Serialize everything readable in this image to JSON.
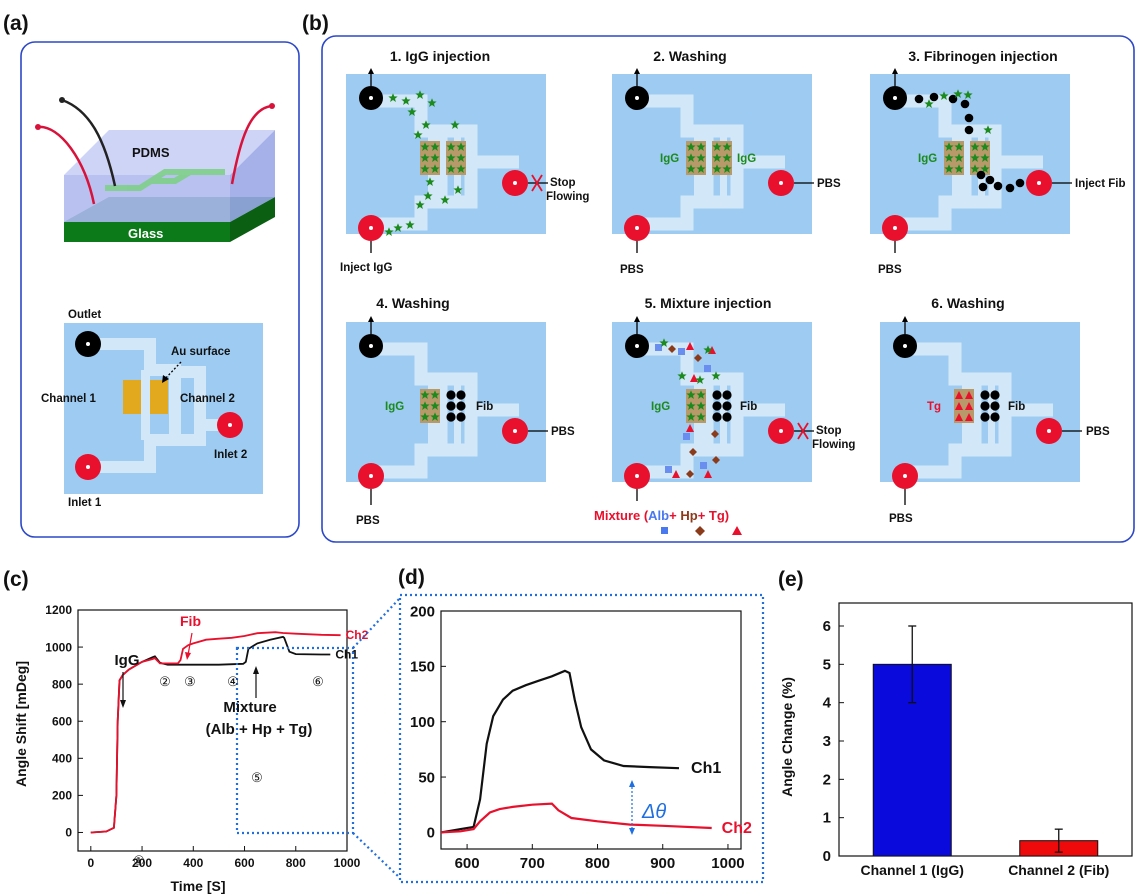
{
  "panels": {
    "a": {
      "label": "(a)",
      "device": {
        "pdms": "PDMS",
        "glass": "Glass"
      },
      "layout": {
        "outlet": "Outlet",
        "au_surface": "Au surface",
        "channel1": "Channel 1",
        "channel2": "Channel 2",
        "inlet1": "Inlet 1",
        "inlet2": "Inlet 2"
      }
    },
    "b": {
      "label": "(b)",
      "steps": [
        {
          "title": "1. IgG injection",
          "inlet_label": "Inject IgG",
          "right_label_1": "Stop",
          "right_label_2": "Flowing"
        },
        {
          "title": "2. Washing",
          "inlet_label": "PBS",
          "right_label": "PBS",
          "ch1": "IgG",
          "ch2": "IgG"
        },
        {
          "title": "3. Fibrinogen injection",
          "inlet_label": "PBS",
          "right_label": "Inject Fib",
          "ch1": "IgG"
        },
        {
          "title": "4. Washing",
          "inlet_label": "PBS",
          "right_label": "PBS",
          "ch1": "IgG",
          "ch2": "Fib"
        },
        {
          "title": "5. Mixture injection",
          "right_label_1": "Stop",
          "right_label_2": "Flowing",
          "ch1": "IgG",
          "ch2": "Fib"
        },
        {
          "title": "6. Washing",
          "inlet_label": "PBS",
          "right_label": "PBS",
          "ch1": "Tg",
          "ch2": "Fib"
        }
      ],
      "mixture": {
        "prefix": "Mixture (",
        "alb": "Alb",
        "plus1": "+ ",
        "hp": "Hp",
        "plus2": "+ ",
        "tg": "Tg",
        "suffix": ")"
      }
    },
    "c": {
      "label": "(c)"
    },
    "d": {
      "label": "(d)"
    },
    "e": {
      "label": "(e)"
    }
  },
  "colors": {
    "pink_red": "#e8102c",
    "channel_blue": "#9dcbf2",
    "frame_blue": "#2c48c8",
    "dotted_blue": "#1f6fe0",
    "bar_blue": "#0a0adc",
    "bar_red": "#ee0a0a",
    "igg_green": "#1d8a1d"
  },
  "chart_data": [
    {
      "id": "c",
      "type": "line",
      "xlabel": "Time [S]",
      "ylabel": "Angle Shift [mDeg]",
      "xlim": [
        -50,
        1000
      ],
      "ylim": [
        -100,
        1200
      ],
      "xticks": [
        0,
        200,
        400,
        600,
        800,
        1000
      ],
      "yticks": [
        0,
        200,
        400,
        600,
        800,
        1000,
        1200
      ],
      "series": [
        {
          "name": "Ch1",
          "color": "#111111",
          "x": [
            0,
            60,
            90,
            100,
            105,
            112,
            125,
            150,
            200,
            240,
            250,
            270,
            300,
            400,
            500,
            595,
            605,
            615,
            650,
            700,
            750,
            755,
            775,
            800,
            900,
            935
          ],
          "y": [
            0,
            5,
            25,
            200,
            600,
            820,
            850,
            880,
            920,
            945,
            950,
            915,
            905,
            905,
            905,
            910,
            920,
            990,
            1020,
            1040,
            1055,
            1050,
            975,
            962,
            960,
            960
          ]
        },
        {
          "name": "Ch2",
          "color": "#e8102c",
          "x": [
            0,
            60,
            90,
            100,
            105,
            112,
            125,
            150,
            200,
            240,
            250,
            270,
            340,
            350,
            360,
            380,
            400,
            450,
            500,
            550,
            600,
            650,
            720,
            750,
            800,
            900,
            975
          ],
          "y": [
            0,
            5,
            25,
            200,
            600,
            820,
            850,
            880,
            920,
            935,
            940,
            912,
            912,
            930,
            990,
            1010,
            1020,
            1040,
            1045,
            1050,
            1060,
            1075,
            1080,
            1076,
            1072,
            1066,
            1064
          ]
        }
      ],
      "annotations": {
        "igg": "IgG",
        "fib": "Fib",
        "mixture": "Mixture",
        "mixture_parts": "(Alb + Hp + Tg)",
        "steps": [
          "①",
          "②",
          "③",
          "④",
          "⑤",
          "⑥"
        ]
      }
    },
    {
      "id": "d",
      "type": "line",
      "xlim": [
        560,
        1020
      ],
      "ylim": [
        -15,
        200
      ],
      "xticks": [
        600,
        700,
        800,
        900,
        1000
      ],
      "yticks": [
        0,
        50,
        100,
        150,
        200
      ],
      "series": [
        {
          "name": "Ch1",
          "color": "#111111",
          "x": [
            560,
            590,
            610,
            620,
            630,
            640,
            655,
            670,
            690,
            710,
            730,
            750,
            757,
            765,
            775,
            790,
            810,
            840,
            880,
            925
          ],
          "y": [
            0,
            3,
            5,
            30,
            80,
            105,
            120,
            128,
            133,
            137,
            141,
            146,
            144,
            120,
            95,
            75,
            65,
            60,
            59,
            58
          ]
        },
        {
          "name": "Ch2",
          "color": "#e8102c",
          "x": [
            560,
            590,
            610,
            620,
            635,
            650,
            670,
            700,
            730,
            740,
            760,
            800,
            850,
            900,
            975
          ],
          "y": [
            0,
            1,
            3,
            10,
            18,
            21,
            23,
            25,
            26,
            20,
            13,
            10,
            7,
            6,
            4
          ]
        }
      ],
      "annotations": {
        "delta": "Δθ"
      }
    },
    {
      "id": "e",
      "type": "bar",
      "categories": [
        "Channel 1 (IgG)",
        "Channel 2 (Fib)"
      ],
      "values": [
        5.0,
        0.4
      ],
      "errors": [
        1.0,
        0.3
      ],
      "colors": [
        "#0a0adc",
        "#ee0a0a"
      ],
      "ylabel": "Angle Change (%)",
      "ylim": [
        0,
        6.6
      ],
      "yticks": [
        0,
        1,
        2,
        3,
        4,
        5,
        6
      ]
    }
  ]
}
